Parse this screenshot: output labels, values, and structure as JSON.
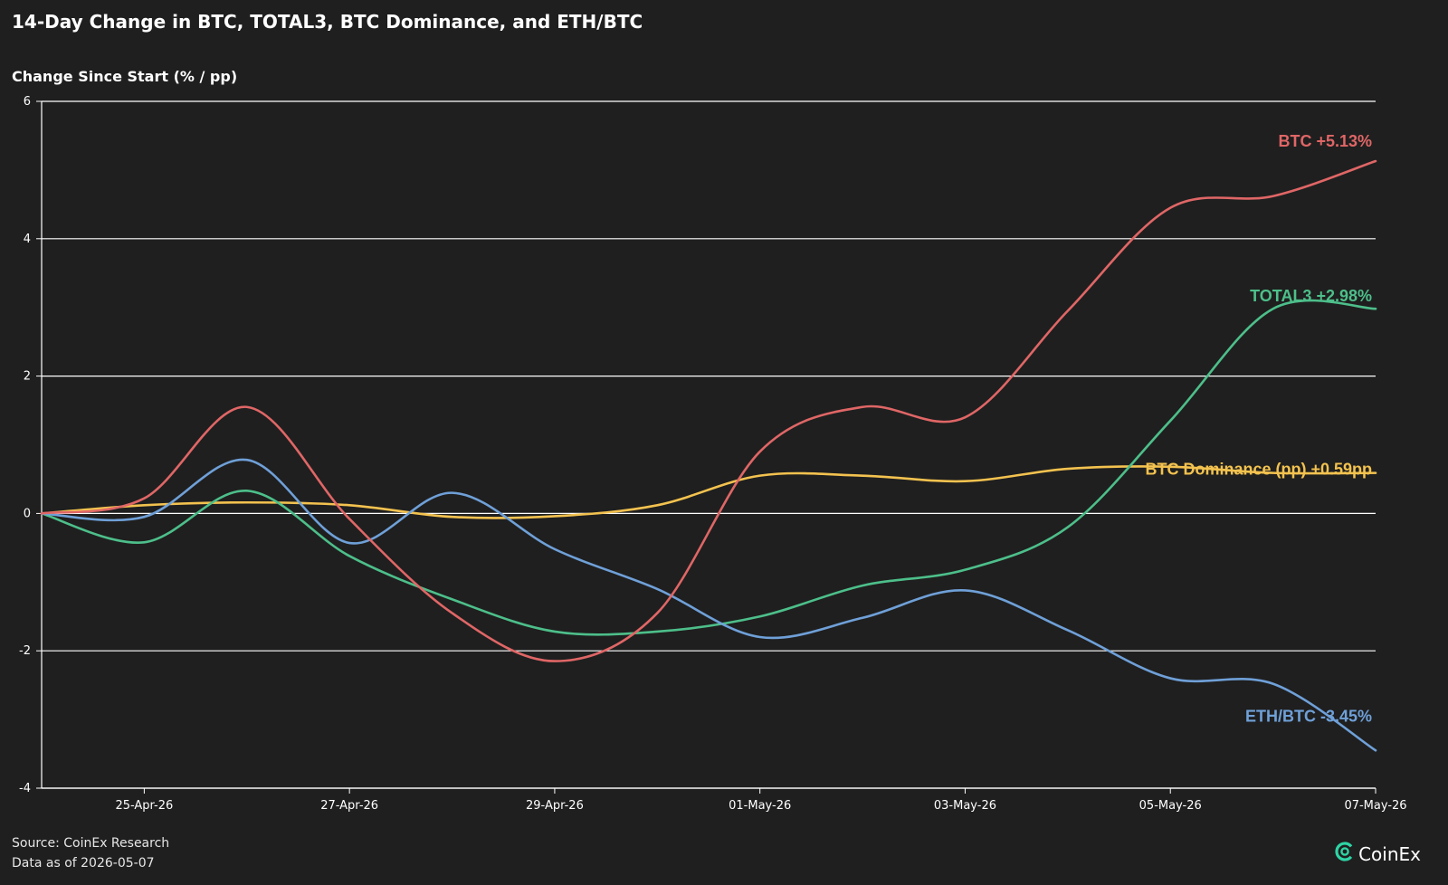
{
  "title": "14-Day Change in BTC, TOTAL3, BTC Dominance, and ETH/BTC",
  "source": "Source: CoinEx Research",
  "as_of": "Data as of 2026-05-07",
  "brand": {
    "name": "CoinEx",
    "logo_icon": "coinex-logo-icon",
    "color": "#2ed4a5"
  },
  "chart_data": {
    "type": "line",
    "title": "14-Day Change in BTC, TOTAL3, BTC Dominance, and ETH/BTC",
    "ylabel": "Change Since Start (% / pp)",
    "xlabel": "",
    "x": [
      "2026-04-24",
      "2026-04-25",
      "2026-04-26",
      "2026-04-27",
      "2026-04-28",
      "2026-04-29",
      "2026-04-30",
      "2026-05-01",
      "2026-05-02",
      "2026-05-03",
      "2026-05-04",
      "2026-05-05",
      "2026-05-06",
      "2026-05-07"
    ],
    "x_ticks": [
      "25-Apr-26",
      "27-Apr-26",
      "29-Apr-26",
      "01-May-26",
      "03-May-26",
      "05-May-26",
      "07-May-26"
    ],
    "x_tick_dates": [
      "2026-04-25",
      "2026-04-27",
      "2026-04-29",
      "2026-05-01",
      "2026-05-03",
      "2026-05-05",
      "2026-05-07"
    ],
    "ylim": [
      -4,
      6
    ],
    "y_ticks": [
      -4,
      -2,
      0,
      2,
      4,
      6
    ],
    "grid": "horizontal",
    "legend": "end-of-line labels",
    "series": [
      {
        "name": "BTC",
        "label": "BTC +5.13%",
        "color": "#e06666",
        "values": [
          0,
          0.22,
          1.55,
          -0.08,
          -1.45,
          -2.15,
          -1.45,
          0.9,
          1.55,
          1.4,
          2.95,
          4.45,
          4.62,
          5.13
        ]
      },
      {
        "name": "TOTAL3",
        "label": "TOTAL3 +2.98%",
        "color": "#4dbf8a",
        "values": [
          0,
          -0.42,
          0.33,
          -0.62,
          -1.25,
          -1.72,
          -1.72,
          -1.5,
          -1.05,
          -0.82,
          -0.2,
          1.35,
          2.98,
          2.98
        ]
      },
      {
        "name": "BTC Dominance (pp)",
        "label": "BTC Dominance (pp) +0.59pp",
        "color": "#f3c24f",
        "values": [
          0,
          0.12,
          0.16,
          0.12,
          -0.05,
          -0.04,
          0.12,
          0.55,
          0.55,
          0.47,
          0.65,
          0.68,
          0.59,
          0.59
        ]
      },
      {
        "name": "ETH/BTC",
        "label": "ETH/BTC -3.45%",
        "color": "#6fa0d8",
        "values": [
          0,
          -0.05,
          0.78,
          -0.43,
          0.3,
          -0.52,
          -1.1,
          -1.8,
          -1.52,
          -1.12,
          -1.7,
          -2.4,
          -2.48,
          -3.45
        ]
      }
    ]
  }
}
